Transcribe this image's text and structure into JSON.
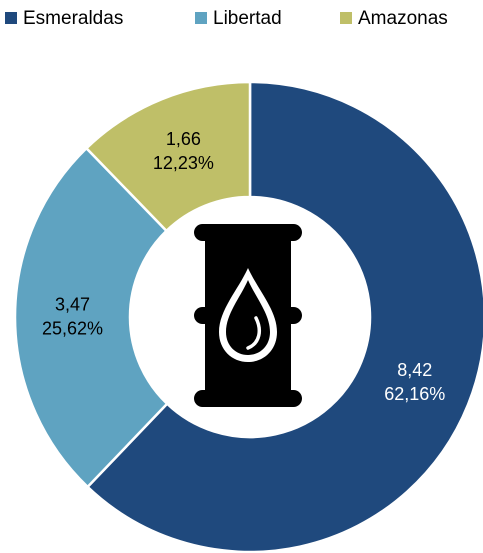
{
  "chart_data": {
    "type": "donut",
    "categories": [
      "Esmeraldas",
      "Libertad",
      "Amazonas"
    ],
    "values": [
      8.42,
      3.47,
      1.66
    ],
    "value_labels": [
      "8,42",
      "3,47",
      "1,66"
    ],
    "percents": [
      62.16,
      25.62,
      12.23
    ],
    "percent_labels": [
      "62,16%",
      "25,62%",
      "12,23%"
    ],
    "colors": [
      "#1f497d",
      "#5fa3c1",
      "#bfbf68"
    ],
    "label_colors": [
      "#ffffff",
      "#000000",
      "#000000"
    ],
    "legend": "top"
  }
}
